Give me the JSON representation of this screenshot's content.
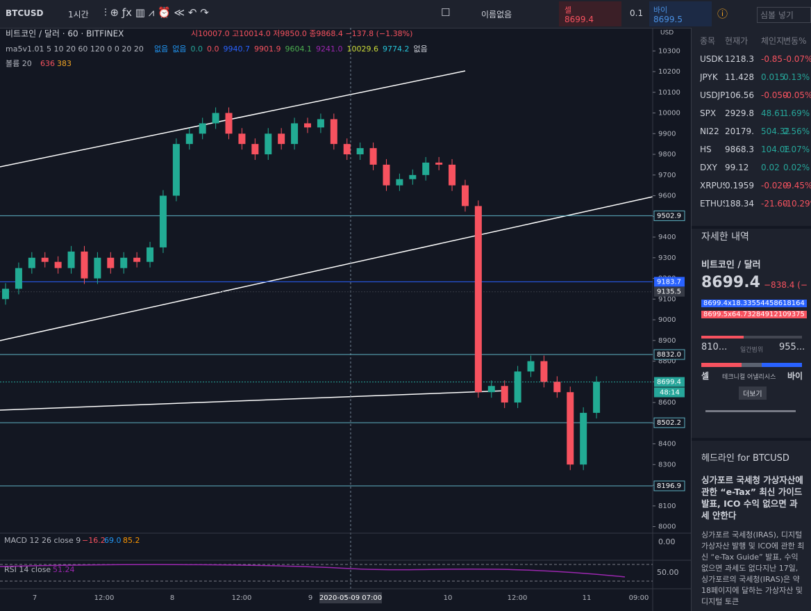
{
  "toolbar": {
    "symbol": "BTCUSD",
    "interval": "1시간",
    "layout_name": "이름없음",
    "sell_label": "셀",
    "sell_price": "8699.4",
    "spread": "0.1",
    "buy_label": "바이",
    "buy_price": "8699.5",
    "search": "심볼 넣기"
  },
  "legend": {
    "title": "비트코인 / 달러 · 60 · BITFINEX",
    "ohlc": "시10007.0 고10014.0 저9850.0 종9868.4 −137.8 (−1.38%)",
    "ma": "ma5v1.01 5 10 20 60 120 0 0 20 20",
    "ma_values": [
      "없음",
      "없음",
      "0.0",
      "0.0",
      "9940.7",
      "9901.9",
      "9604.1",
      "9241.0",
      "10029.6",
      "9774.2",
      "없음"
    ],
    "volume": "볼륨 20",
    "volume_values": [
      "636",
      "383"
    ]
  },
  "price_chart": {
    "currency": "USD",
    "ylim": [
      7975,
      10395
    ],
    "yticks": [
      8000,
      8100,
      8200,
      8300,
      8400,
      8500,
      8600,
      8700,
      8800,
      8900,
      9000,
      9100,
      9200,
      9300,
      9400,
      9500,
      9600,
      9700,
      9800,
      9900,
      10000,
      10100,
      10200,
      10300
    ],
    "levels": [
      9502.9,
      9183.7,
      9135.5,
      {
        "value": 8832.0,
        "label": "8832.0"
      },
      8699.4,
      8502.2,
      8196.9
    ],
    "countdown": "48:14",
    "open": [
      9100,
      9150,
      9250,
      9300,
      9280,
      9250,
      9330,
      9200,
      9300,
      9250,
      9300,
      9280,
      9350,
      9600,
      9850,
      9900,
      9950,
      10000,
      9900,
      9850,
      9800,
      9900,
      9850,
      9950,
      9930,
      9970,
      9850,
      9800,
      9830,
      9750,
      9650,
      9680,
      9700,
      9760,
      9750,
      9650,
      9550,
      8650,
      8680,
      8600,
      8750,
      8800,
      8700,
      8650,
      8300,
      8550
    ],
    "close": [
      9150,
      9250,
      9300,
      9280,
      9250,
      9330,
      9200,
      9300,
      9250,
      9300,
      9280,
      9350,
      9600,
      9850,
      9900,
      9950,
      10000,
      9900,
      9850,
      9800,
      9900,
      9850,
      9950,
      9930,
      9970,
      9850,
      9800,
      9830,
      9750,
      9650,
      9680,
      9700,
      9760,
      9750,
      9650,
      9550,
      8650,
      8680,
      8600,
      8750,
      8800,
      8700,
      8650,
      8300,
      8550,
      8700
    ],
    "time_labels": [
      "7",
      "12:00",
      "8",
      "12:00",
      "9",
      "2020-05-09  07:00",
      "10",
      "12:00",
      "11",
      "09:00"
    ]
  },
  "macd": {
    "label": "MACD 12 26 close 9",
    "values": [
      "−16.2",
      "69.0",
      "85.2"
    ],
    "axis": "0.00"
  },
  "rsi": {
    "label": "RSI 14 close",
    "value": "51.24",
    "axis": "50.00"
  },
  "watchlist": {
    "header": [
      "종목",
      "현재가",
      "체인지",
      "변동%"
    ],
    "rows": [
      [
        "USDK",
        "1218.3",
        "-0.85",
        "-0.07%"
      ],
      [
        "JPYK",
        "11.428",
        "0.015",
        "0.13%"
      ],
      [
        "USDJP",
        "106.56",
        "-0.050",
        "-0.05%"
      ],
      [
        "SPX",
        "2929.8",
        "48.61",
        "1.69%"
      ],
      [
        "NI22",
        "20179.",
        "504.32",
        "2.56%"
      ],
      [
        "HS",
        "9868.3",
        "104.08",
        "1.07%"
      ],
      [
        "DXY",
        "99.12",
        "0.02",
        "0.02%"
      ],
      [
        "XRPUS",
        "0.1959",
        "-0.020",
        "-9.45%"
      ],
      [
        "ETHUS",
        "188.34",
        "-21.60",
        "-10.29%"
      ]
    ]
  },
  "details": {
    "heading": "자세한 내역",
    "name": "비트코인 / 달러",
    "price": "8699.4",
    "change": "−838.4 (−",
    "bid": "8699.4x18.33554458618164",
    "ask": "8699.5x64.73284912109375",
    "range_low": "810...",
    "range_label": "일간범위",
    "range_high": "955...",
    "sell": "셀",
    "technical": "테크니컬 어낼리시스",
    "buy": "바이",
    "more": "더보기"
  },
  "headlines": {
    "heading": "헤드라인 for BTCUSD",
    "title": "싱가포르 국세청 가상자산에 관한 “e-Tax” 최신 가이드 발표, ICO 수익 없으면 과세 안한다",
    "body": "싱가포르 국세청(IRAS), 디지털 가상자산 발행 및 ICO에 관한 최신 “e-Tax Guide” 발표, 수익 없으면 과세도 없다지난 17일, 싱가포르의 국세청(IRAS)은 약 18페이지에 달하는 가상자산 및 디지털 토큰"
  }
}
